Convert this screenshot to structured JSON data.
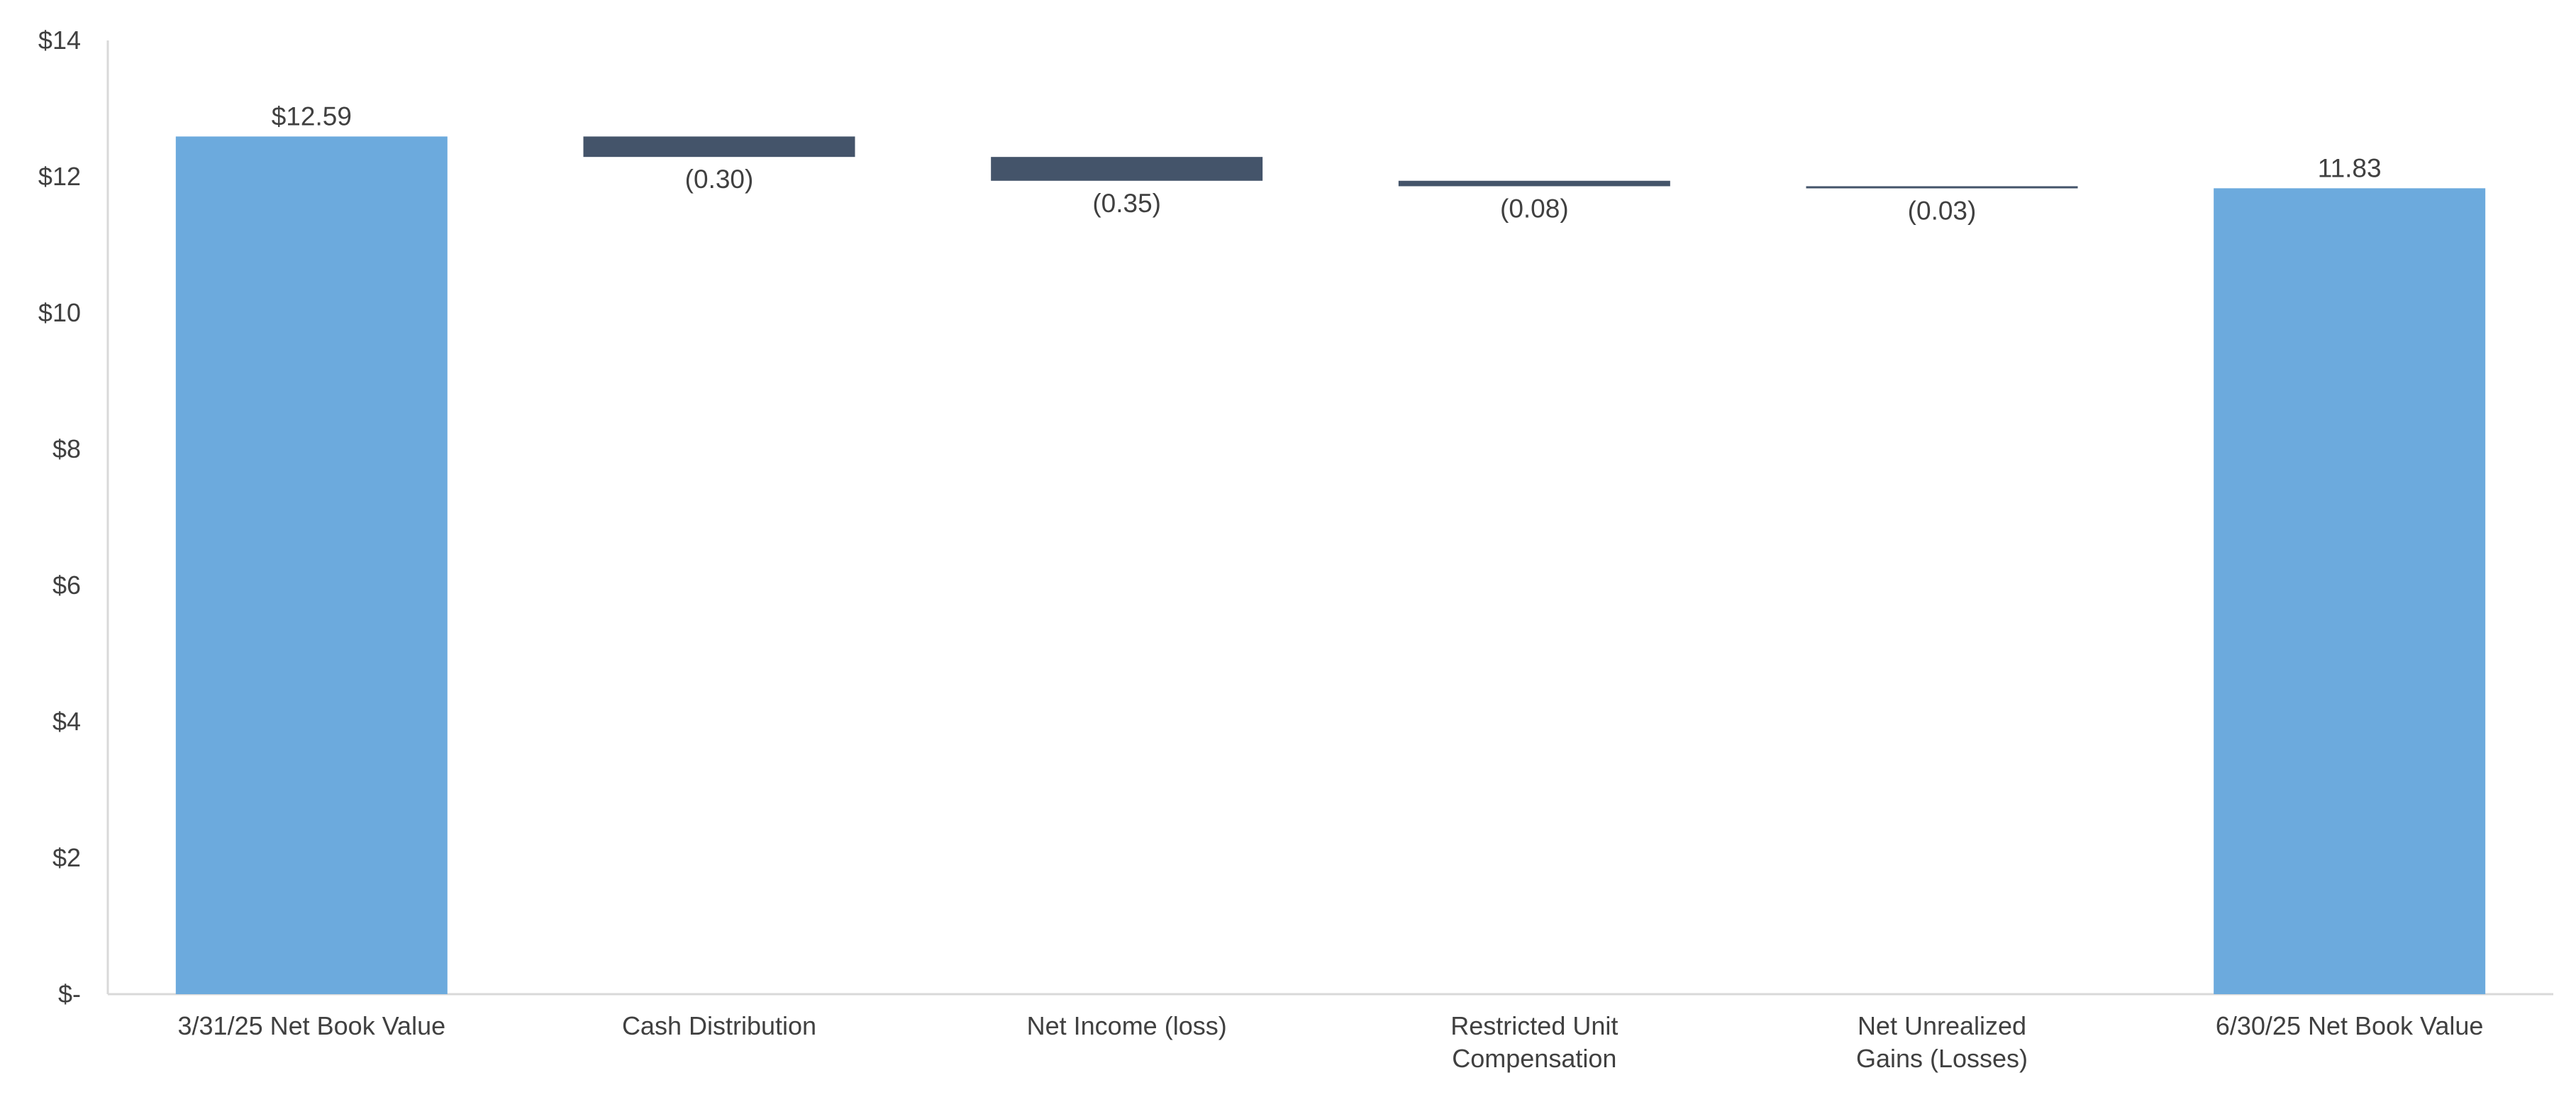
{
  "chart_data": {
    "type": "bar",
    "subtype": "waterfall",
    "title": "",
    "xlabel": "",
    "ylabel": "",
    "ylim": [
      0,
      14
    ],
    "y_ticks": [
      {
        "value": 0,
        "label": "$-"
      },
      {
        "value": 2,
        "label": "$2"
      },
      {
        "value": 4,
        "label": "$4"
      },
      {
        "value": 6,
        "label": "$6"
      },
      {
        "value": 8,
        "label": "$8"
      },
      {
        "value": 10,
        "label": "$10"
      },
      {
        "value": 12,
        "label": "$12"
      },
      {
        "value": 14,
        "label": "$14"
      }
    ],
    "grid": false,
    "legend": "none",
    "colors": {
      "total": "#6CAADD",
      "change": "#44546A",
      "axis": "#D9D9D9",
      "text": "#404040"
    },
    "categories": [
      [
        "3/31/25 Net Book Value"
      ],
      [
        "Cash Distribution"
      ],
      [
        "Net Income (loss)"
      ],
      [
        "Restricted Unit",
        "Compensation"
      ],
      [
        "Net Unrealized",
        "Gains (Losses)"
      ],
      [
        "6/30/25 Net Book Value"
      ]
    ],
    "bars": [
      {
        "kind": "total",
        "start": 0,
        "end": 12.59,
        "label": "$12.59"
      },
      {
        "kind": "change",
        "start": 12.59,
        "end": 12.29,
        "label": "(0.30)"
      },
      {
        "kind": "change",
        "start": 12.29,
        "end": 11.94,
        "label": "(0.35)"
      },
      {
        "kind": "change",
        "start": 11.94,
        "end": 11.86,
        "label": "(0.08)"
      },
      {
        "kind": "change",
        "start": 11.86,
        "end": 11.83,
        "label": "(0.03)"
      },
      {
        "kind": "total",
        "start": 0,
        "end": 11.83,
        "label": "11.83"
      }
    ]
  }
}
